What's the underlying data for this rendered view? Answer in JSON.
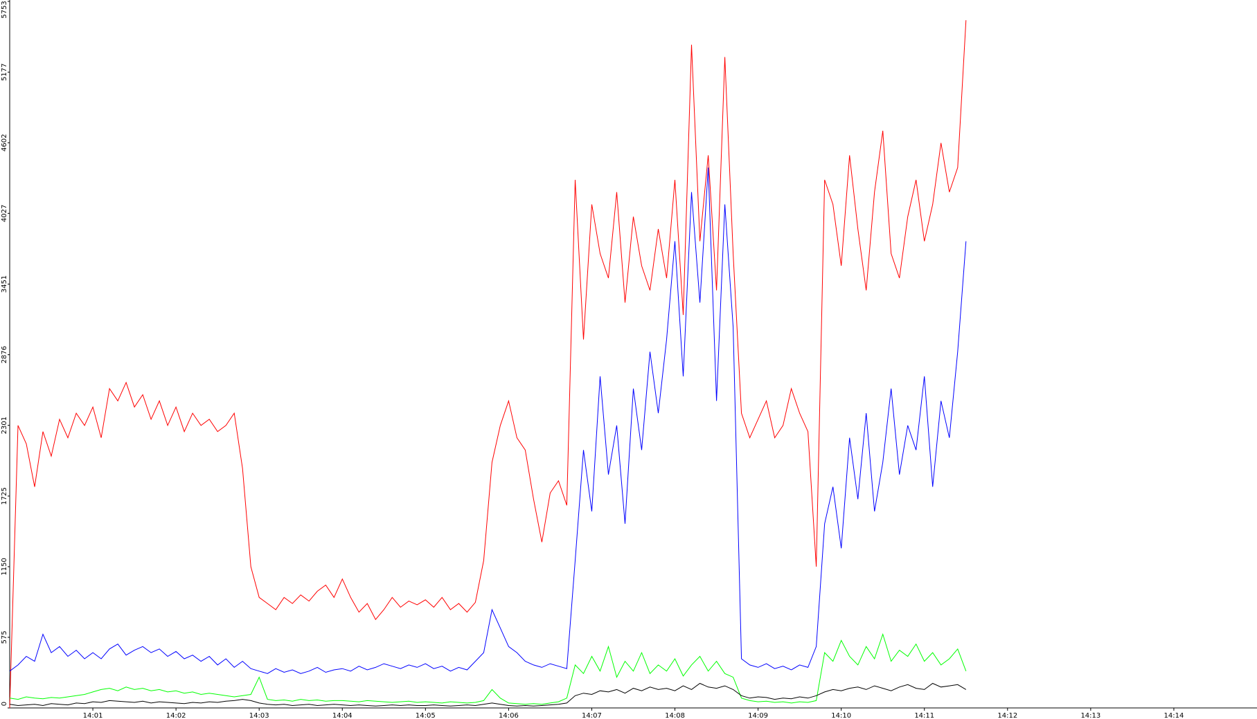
{
  "chart_data": {
    "type": "line",
    "x": [
      840.0,
      840.1,
      840.2,
      840.3,
      840.4,
      840.5,
      840.6,
      840.7,
      840.8,
      840.9,
      841.0,
      841.1,
      841.2,
      841.3,
      841.4,
      841.5,
      841.6,
      841.7,
      841.8,
      841.9,
      842.0,
      842.1,
      842.2,
      842.3,
      842.4,
      842.5,
      842.6,
      842.7,
      842.8,
      842.9,
      843.0,
      843.1,
      843.2,
      843.3,
      843.4,
      843.5,
      843.6,
      843.7,
      843.8,
      843.9,
      844.0,
      844.1,
      844.2,
      844.3,
      844.4,
      844.5,
      844.6,
      844.7,
      844.8,
      844.9,
      845.0,
      845.1,
      845.2,
      845.3,
      845.4,
      845.5,
      845.6,
      845.7,
      845.8,
      845.9,
      846.0,
      846.1,
      846.2,
      846.3,
      846.4,
      846.5,
      846.6,
      846.7,
      846.8,
      846.9,
      847.0,
      847.1,
      847.2,
      847.3,
      847.4,
      847.5,
      847.6,
      847.7,
      847.8,
      847.9,
      848.0,
      848.1,
      848.2,
      848.3,
      848.4,
      848.5,
      848.6,
      848.7,
      848.8,
      848.9,
      849.0,
      849.1,
      849.2,
      849.3,
      849.4,
      849.5,
      849.6,
      849.7,
      849.8,
      849.9,
      850.0,
      850.1,
      850.2,
      850.3,
      850.4,
      850.5,
      850.6,
      850.7,
      850.8,
      850.9,
      851.0,
      851.1,
      851.2,
      851.3,
      851.4,
      851.5
    ],
    "series": [
      {
        "color": "#ff0000",
        "values": [
          0,
          2300,
          2150,
          1800,
          2250,
          2050,
          2350,
          2200,
          2400,
          2300,
          2450,
          2200,
          2600,
          2500,
          2650,
          2450,
          2550,
          2350,
          2500,
          2300,
          2450,
          2250,
          2400,
          2300,
          2350,
          2250,
          2300,
          2400,
          1950,
          1150,
          900,
          850,
          800,
          900,
          850,
          920,
          870,
          950,
          1000,
          900,
          1050,
          900,
          780,
          850,
          720,
          800,
          900,
          820,
          870,
          840,
          880,
          820,
          900,
          800,
          850,
          780,
          860,
          1200,
          2000,
          2300,
          2500,
          2200,
          2100,
          1700,
          1350,
          1750,
          1850,
          1650,
          4300,
          3000,
          4100,
          3700,
          3500,
          4200,
          3300,
          4000,
          3600,
          3400,
          3900,
          3500,
          4300,
          3200,
          5400,
          3800,
          4500,
          3400,
          5300,
          3700,
          2400,
          2200,
          2350,
          2500,
          2200,
          2300,
          2600,
          2400,
          2250,
          1150,
          4300,
          4100,
          3600,
          4500,
          3900,
          3400,
          4200,
          4700,
          3700,
          3500,
          4000,
          4300,
          3800,
          4100,
          4600,
          4200,
          4400,
          5600
        ]
      },
      {
        "color": "#0000ff",
        "values": [
          300,
          350,
          420,
          380,
          600,
          450,
          500,
          420,
          470,
          400,
          450,
          400,
          480,
          520,
          430,
          470,
          500,
          450,
          480,
          420,
          460,
          400,
          430,
          380,
          420,
          350,
          400,
          330,
          380,
          320,
          300,
          280,
          320,
          290,
          310,
          280,
          300,
          330,
          290,
          310,
          320,
          300,
          340,
          310,
          330,
          360,
          340,
          320,
          350,
          330,
          360,
          320,
          340,
          300,
          330,
          310,
          380,
          450,
          800,
          650,
          500,
          450,
          380,
          350,
          330,
          360,
          340,
          320,
          1200,
          2100,
          1600,
          2700,
          1900,
          2300,
          1500,
          2600,
          2100,
          2900,
          2400,
          3000,
          3800,
          2700,
          4200,
          3300,
          4400,
          2500,
          4100,
          3100,
          400,
          350,
          330,
          360,
          320,
          340,
          310,
          350,
          330,
          500,
          1500,
          1800,
          1300,
          2200,
          1700,
          2400,
          1600,
          2000,
          2600,
          1900,
          2300,
          2100,
          2700,
          1800,
          2500,
          2200,
          2900,
          3800
        ]
      },
      {
        "color": "#00ff00",
        "values": [
          80,
          70,
          90,
          80,
          75,
          85,
          80,
          90,
          100,
          110,
          130,
          150,
          160,
          140,
          170,
          150,
          160,
          140,
          150,
          130,
          140,
          120,
          130,
          110,
          120,
          110,
          100,
          90,
          100,
          110,
          250,
          70,
          60,
          65,
          55,
          70,
          60,
          65,
          55,
          60,
          60,
          55,
          50,
          60,
          55,
          50,
          45,
          50,
          55,
          45,
          50,
          45,
          40,
          50,
          45,
          40,
          45,
          60,
          150,
          80,
          40,
          35,
          30,
          35,
          30,
          40,
          50,
          80,
          350,
          280,
          420,
          300,
          500,
          250,
          380,
          300,
          450,
          280,
          350,
          300,
          400,
          260,
          350,
          420,
          300,
          380,
          280,
          250,
          80,
          60,
          50,
          55,
          45,
          50,
          40,
          50,
          45,
          60,
          450,
          380,
          550,
          420,
          350,
          500,
          400,
          600,
          380,
          470,
          420,
          520,
          380,
          450,
          350,
          400,
          480,
          300
        ]
      },
      {
        "color": "#000000",
        "values": [
          30,
          20,
          25,
          30,
          20,
          35,
          30,
          25,
          40,
          35,
          50,
          45,
          60,
          55,
          50,
          45,
          55,
          40,
          50,
          45,
          40,
          35,
          45,
          40,
          50,
          45,
          55,
          60,
          70,
          60,
          40,
          30,
          25,
          30,
          20,
          25,
          30,
          20,
          25,
          30,
          25,
          20,
          25,
          20,
          15,
          20,
          25,
          20,
          25,
          20,
          20,
          25,
          20,
          15,
          20,
          25,
          20,
          30,
          40,
          30,
          20,
          15,
          20,
          15,
          20,
          25,
          30,
          40,
          100,
          120,
          110,
          140,
          130,
          150,
          120,
          160,
          140,
          170,
          150,
          160,
          140,
          180,
          150,
          200,
          170,
          160,
          180,
          150,
          100,
          80,
          90,
          85,
          70,
          80,
          75,
          90,
          80,
          100,
          130,
          150,
          140,
          160,
          170,
          150,
          180,
          160,
          140,
          170,
          190,
          160,
          150,
          200,
          170,
          180,
          190,
          150
        ]
      }
    ],
    "xlim": [
      840,
      855
    ],
    "xticks": [
      {
        "value": 841,
        "label": "14:01"
      },
      {
        "value": 842,
        "label": "14:02"
      },
      {
        "value": 843,
        "label": "14:03"
      },
      {
        "value": 844,
        "label": "14:04"
      },
      {
        "value": 845,
        "label": "14:05"
      },
      {
        "value": 846,
        "label": "14:06"
      },
      {
        "value": 847,
        "label": "14:07"
      },
      {
        "value": 848,
        "label": "14:08"
      },
      {
        "value": 849,
        "label": "14:09"
      },
      {
        "value": 850,
        "label": "14:10"
      },
      {
        "value": 851,
        "label": "14:11"
      },
      {
        "value": 852,
        "label": "14:12"
      },
      {
        "value": 853,
        "label": "14:13"
      },
      {
        "value": 854,
        "label": "14:14"
      }
    ],
    "ylim": [
      0,
      5753
    ],
    "yticks": [
      0,
      575,
      1150,
      1725,
      2301,
      2876,
      3451,
      4027,
      4602,
      5177,
      5753
    ]
  }
}
